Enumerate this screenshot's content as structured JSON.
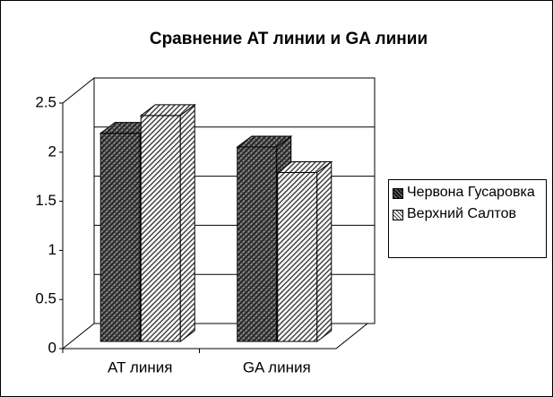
{
  "chart_data": {
    "type": "bar3d",
    "title": "Сравнение AT линии и GA линии",
    "categories": [
      "AT линия",
      "GA линия"
    ],
    "series": [
      {
        "name": "Червона Гусаровка",
        "color": "#555555",
        "values": [
          2.12,
          1.98
        ]
      },
      {
        "name": "Верхний Салтов",
        "color": "#dddddd",
        "values": [
          2.3,
          1.72
        ]
      }
    ],
    "ylim": [
      0,
      2.5
    ],
    "yticks": [
      0,
      0.5,
      1,
      1.5,
      2,
      2.5
    ],
    "grid": true,
    "legend": "right"
  }
}
